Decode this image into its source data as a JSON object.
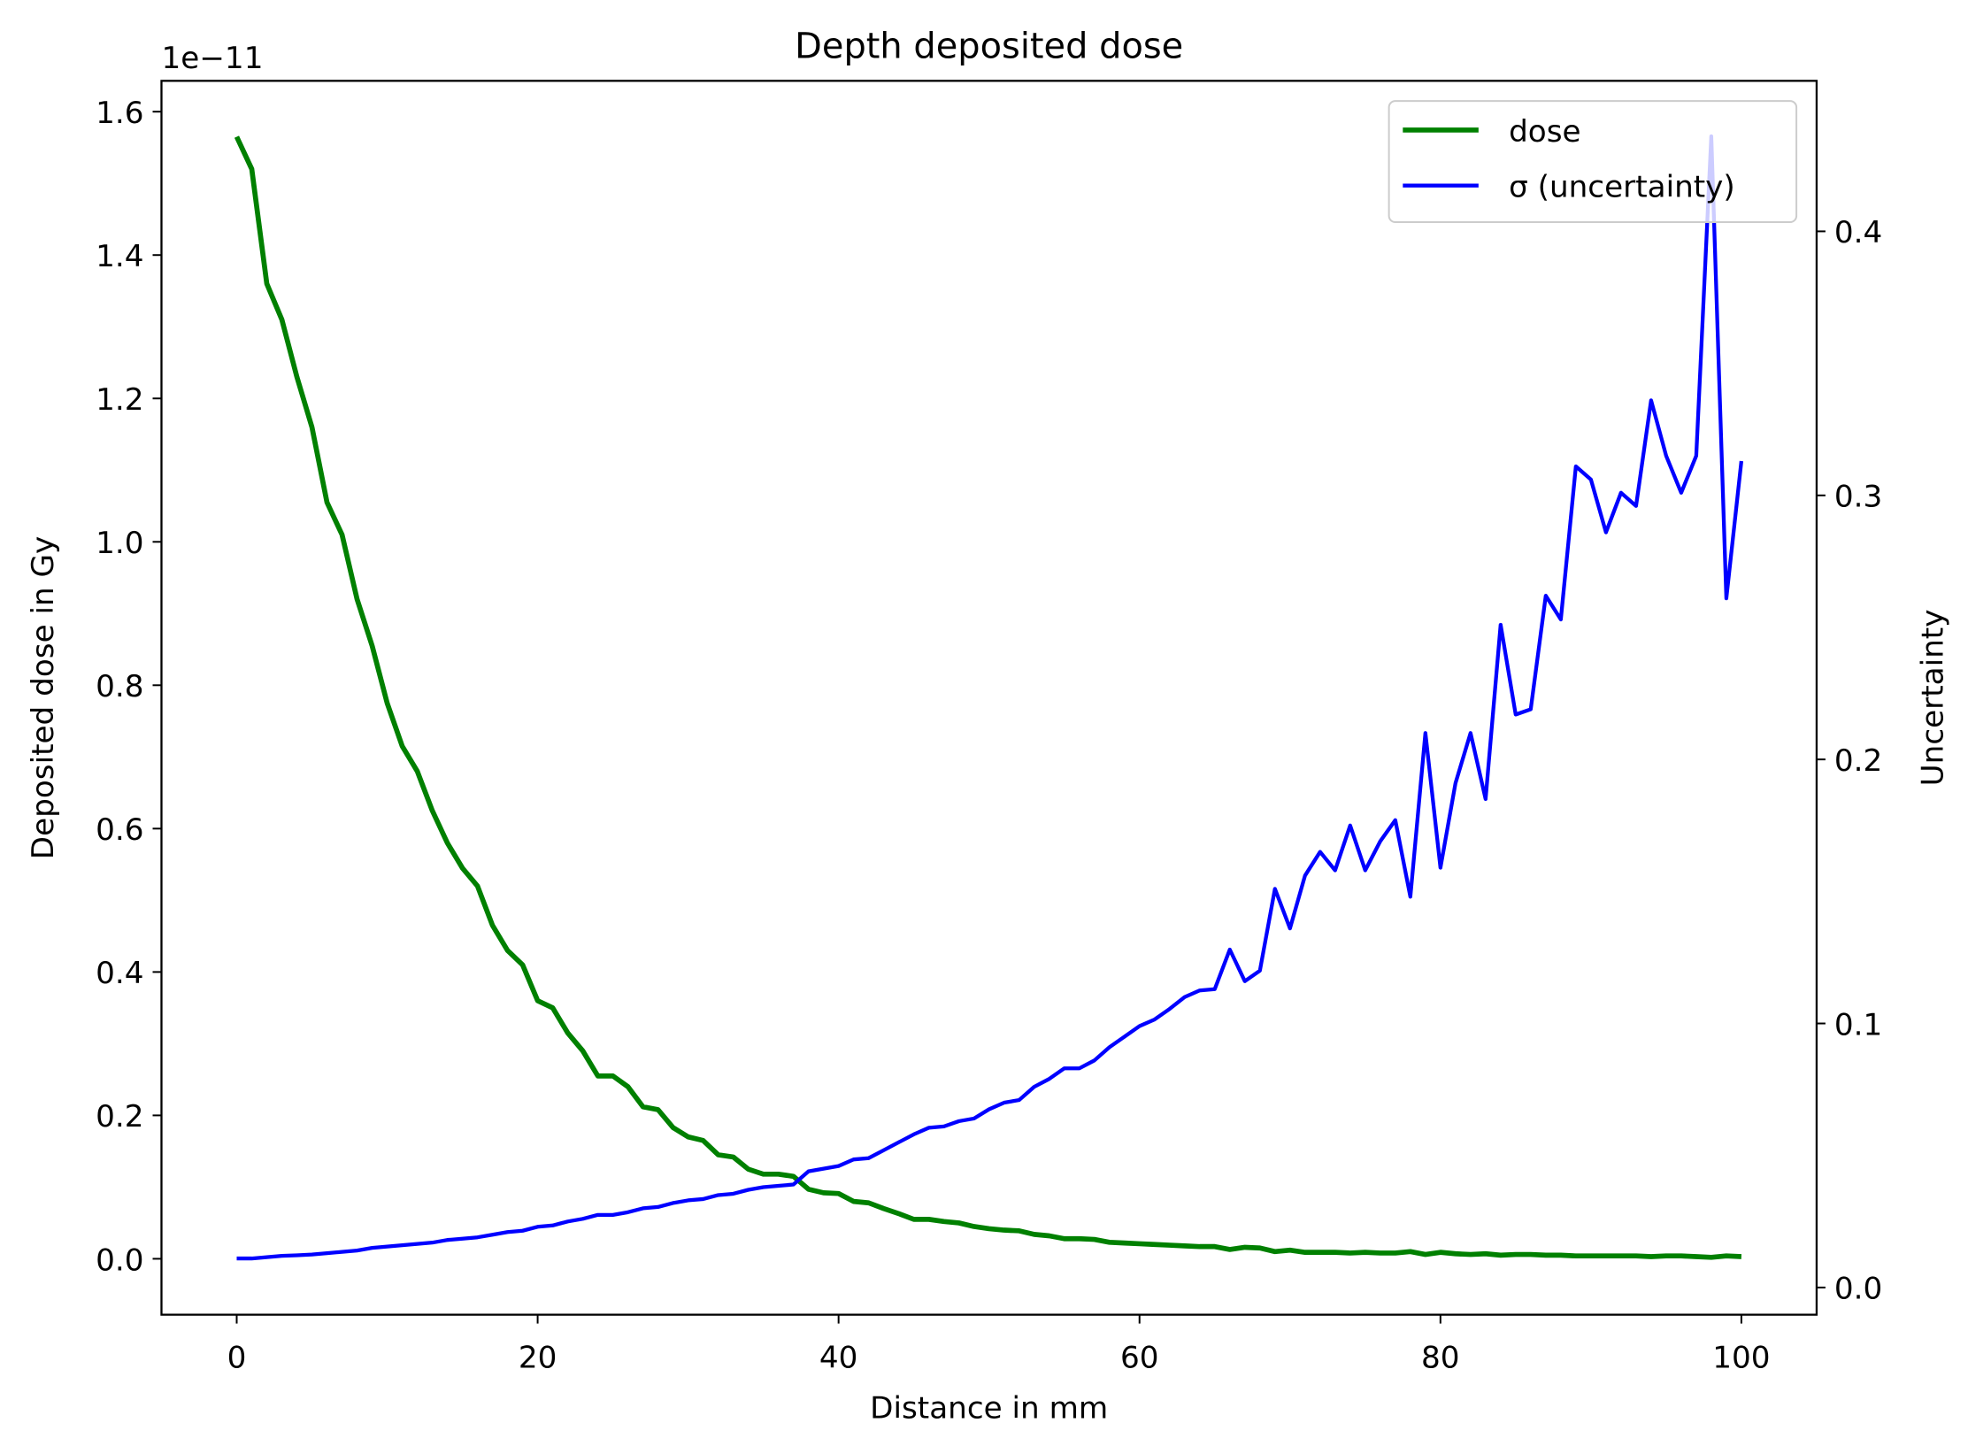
{
  "chart_data": {
    "type": "line",
    "title": "Depth deposited dose",
    "xlabel": "Distance in mm",
    "ylabel": "Deposited dose in Gy",
    "y2label": "Uncertainty",
    "y_offset_label": "1e−11",
    "legend": "upper right",
    "x": [
      0,
      1,
      2,
      3,
      4,
      5,
      6,
      7,
      8,
      9,
      10,
      11,
      12,
      13,
      14,
      15,
      16,
      17,
      18,
      19,
      20,
      21,
      22,
      23,
      24,
      25,
      26,
      27,
      28,
      29,
      30,
      31,
      32,
      33,
      34,
      35,
      36,
      37,
      38,
      39,
      40,
      41,
      42,
      43,
      44,
      45,
      46,
      47,
      48,
      49,
      50,
      51,
      52,
      53,
      54,
      55,
      56,
      57,
      58,
      59,
      60,
      61,
      62,
      63,
      64,
      65,
      66,
      67,
      68,
      69,
      70,
      71,
      72,
      73,
      74,
      75,
      76,
      77,
      78,
      79,
      80,
      81,
      82,
      83,
      84,
      85,
      86,
      87,
      88,
      89,
      90,
      91,
      92,
      93,
      94,
      95,
      96,
      97,
      98,
      99,
      100
    ],
    "series": [
      {
        "name": "dose",
        "color": "#008000",
        "width": 4,
        "values": [
          1.565,
          1.52,
          1.36,
          1.31,
          1.23,
          1.16,
          1.055,
          1.01,
          0.92,
          0.855,
          0.775,
          0.715,
          0.68,
          0.625,
          0.58,
          0.545,
          0.52,
          0.465,
          0.43,
          0.41,
          0.36,
          0.35,
          0.315,
          0.29,
          0.255,
          0.255,
          0.24,
          0.212,
          0.208,
          0.183,
          0.17,
          0.165,
          0.145,
          0.142,
          0.125,
          0.118,
          0.118,
          0.115,
          0.097,
          0.092,
          0.091,
          0.08,
          0.078,
          0.07,
          0.063,
          0.055,
          0.055,
          0.052,
          0.05,
          0.045,
          0.042,
          0.04,
          0.039,
          0.034,
          0.032,
          0.028,
          0.028,
          0.027,
          0.023,
          0.022,
          0.021,
          0.02,
          0.019,
          0.018,
          0.017,
          0.017,
          0.013,
          0.016,
          0.015,
          0.01,
          0.012,
          0.009,
          0.009,
          0.009,
          0.008,
          0.009,
          0.008,
          0.008,
          0.01,
          0.006,
          0.009,
          0.007,
          0.006,
          0.007,
          0.005,
          0.006,
          0.006,
          0.005,
          0.005,
          0.004,
          0.004,
          0.004,
          0.004,
          0.004,
          0.003,
          0.004,
          0.004,
          0.003,
          0.002,
          0.004,
          0.003
        ]
      },
      {
        "name": "σ (uncertainty)",
        "color": "#0000ff",
        "width": 3,
        "axis": "y2",
        "values": [
          0.011,
          0.011,
          0.0115,
          0.012,
          0.0122,
          0.0125,
          0.013,
          0.0135,
          0.014,
          0.015,
          0.0155,
          0.016,
          0.0165,
          0.017,
          0.018,
          0.0185,
          0.019,
          0.02,
          0.021,
          0.0215,
          0.023,
          0.0235,
          0.025,
          0.026,
          0.0275,
          0.0275,
          0.0285,
          0.03,
          0.0305,
          0.032,
          0.033,
          0.0335,
          0.035,
          0.0355,
          0.037,
          0.038,
          0.0385,
          0.039,
          0.044,
          0.045,
          0.046,
          0.0485,
          0.049,
          0.052,
          0.055,
          0.058,
          0.0605,
          0.061,
          0.063,
          0.064,
          0.0675,
          0.07,
          0.071,
          0.076,
          0.079,
          0.083,
          0.083,
          0.086,
          0.091,
          0.095,
          0.099,
          0.1015,
          0.1055,
          0.11,
          0.1125,
          0.113,
          0.128,
          0.116,
          0.12,
          0.151,
          0.136,
          0.156,
          0.165,
          0.158,
          0.175,
          0.158,
          0.169,
          0.177,
          0.148,
          0.21,
          0.159,
          0.191,
          0.21,
          0.185,
          0.251,
          0.217,
          0.219,
          0.262,
          0.253,
          0.311,
          0.306,
          0.286,
          0.301,
          0.296,
          0.336,
          0.315,
          0.301,
          0.315,
          0.436,
          0.261,
          0.313
        ]
      }
    ],
    "xlim": [
      -5,
      105
    ],
    "xticks": [
      0,
      20,
      40,
      60,
      80,
      100
    ],
    "ylim": [
      -0.078,
      1.643
    ],
    "yticks": [
      {
        "value": 0,
        "label": "0.0"
      },
      0.2,
      0.4,
      0.6,
      0.8,
      {
        "value": 1,
        "label": "1.0"
      },
      1.2,
      1.4,
      1.6
    ],
    "y2lim": [
      -0.0103,
      0.457
    ],
    "y2ticks": [
      {
        "value": 0,
        "label": "0.0"
      },
      0.1,
      0.2,
      0.3,
      0.4
    ],
    "grid": false
  }
}
